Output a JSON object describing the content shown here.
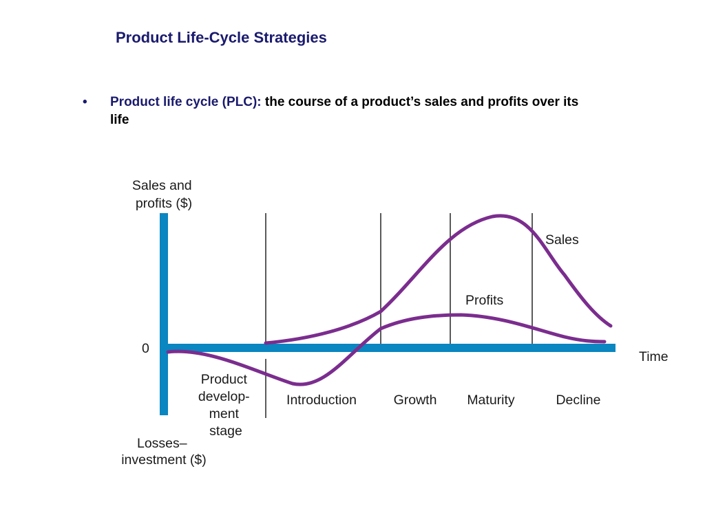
{
  "slide": {
    "title": "Product Life-Cycle Strategies",
    "bullet_term": "Product life cycle (PLC):",
    "bullet_definition": " the course of a product’s sales and profits over its life"
  },
  "diagram": {
    "y_axis_label_lines": [
      "Sales and",
      "profits ($)"
    ],
    "zero_label": "0",
    "x_axis_label": "Time",
    "negative_label_lines": [
      "Losses–",
      "investment ($)"
    ],
    "curves": [
      {
        "name": "Sales",
        "color": "#7b2d8e"
      },
      {
        "name": "Profits",
        "color": "#7b2d8e"
      }
    ],
    "stages": [
      {
        "label_lines": [
          "Product",
          "develop-",
          "ment",
          "stage"
        ]
      },
      {
        "label_lines": [
          "Introduction"
        ]
      },
      {
        "label_lines": [
          "Growth"
        ]
      },
      {
        "label_lines": [
          "Maturity"
        ]
      },
      {
        "label_lines": [
          "Decline"
        ]
      }
    ],
    "colors": {
      "axis": "#0a86c1",
      "curve": "#7b2d8e",
      "divider": "#222222"
    }
  }
}
